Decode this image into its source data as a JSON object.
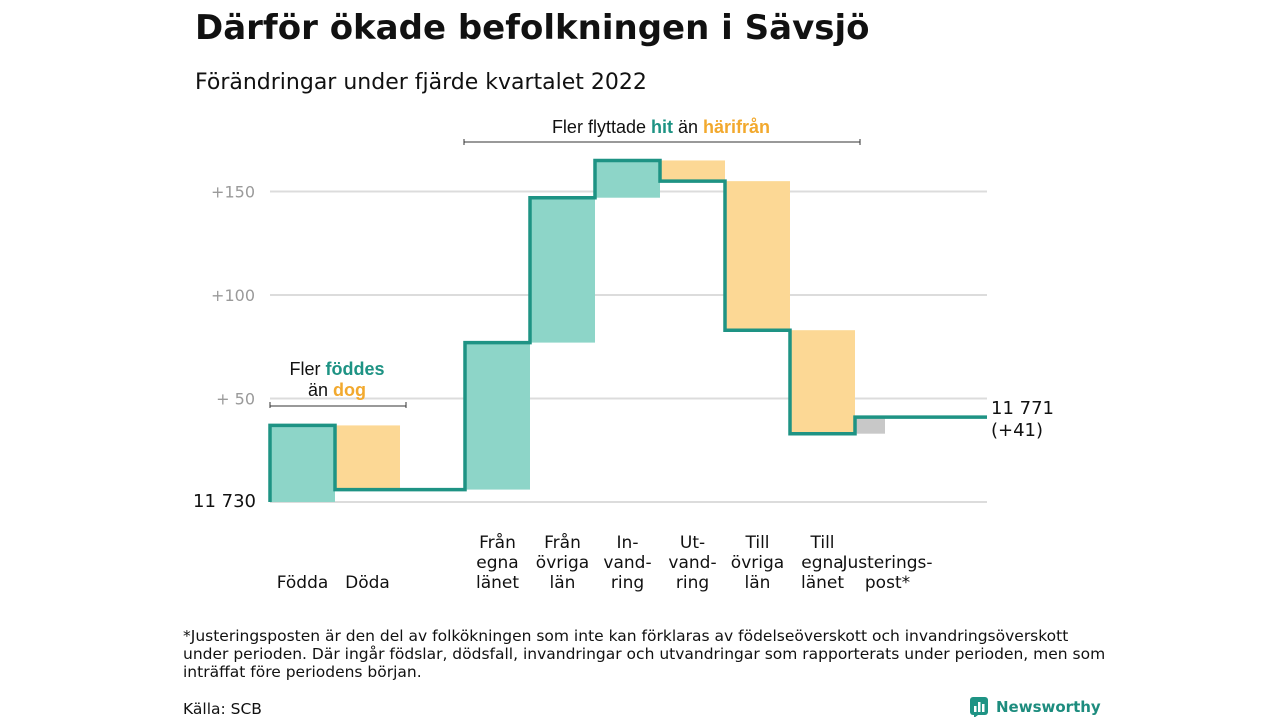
{
  "header": {
    "title": "Därför ökade befolkningen i Sävsjö",
    "subtitle": "Förändringar under fjärde kvartalet 2022"
  },
  "colors": {
    "line": "#1e9384",
    "increase": "#8dd5c8",
    "decrease": "#fcd895",
    "adjustment": "#c8c8c8",
    "grid": "#dcdcdc",
    "tick": "#9a9a9a",
    "hit": "#1e9384",
    "harifran": "#f2a92e"
  },
  "annotations": {
    "births_pre": "Fler ",
    "births_word": "föddes",
    "births_mid": "än ",
    "births_word2": "dog",
    "moves_pre": "Fler flyttade ",
    "moves_hit": "hit",
    "moves_mid": " än ",
    "moves_harifran": "härifrån"
  },
  "chart_data": {
    "type": "waterfall",
    "start_value": 11730,
    "start_label": "11 730",
    "end_label": [
      "11 771",
      "(+41)"
    ],
    "y_ticks": [
      {
        "value": 50,
        "label": "+ 50"
      },
      {
        "value": 100,
        "label": "+100"
      },
      {
        "value": 150,
        "label": "+150"
      }
    ],
    "ylim": [
      0,
      165
    ],
    "grid": true,
    "steps": [
      {
        "label": [
          "Födda"
        ],
        "change": 37,
        "kind": "increase"
      },
      {
        "label": [
          "Döda"
        ],
        "change": -31,
        "kind": "decrease"
      },
      {
        "label": [
          ""
        ],
        "change": 0,
        "kind": "gap"
      },
      {
        "label": [
          "Från",
          "egna",
          "länet"
        ],
        "change": 71,
        "kind": "increase"
      },
      {
        "label": [
          "Från",
          "övriga",
          "län"
        ],
        "change": 70,
        "kind": "increase"
      },
      {
        "label": [
          "In-",
          "vand-",
          "ring"
        ],
        "change": 18,
        "kind": "increase"
      },
      {
        "label": [
          "Ut-",
          "vand-",
          "ring"
        ],
        "change": -10,
        "kind": "decrease"
      },
      {
        "label": [
          "Till",
          "övriga",
          "län"
        ],
        "change": -72,
        "kind": "decrease"
      },
      {
        "label": [
          "Till",
          "egna",
          "länet"
        ],
        "change": -50,
        "kind": "decrease"
      },
      {
        "label": [
          "Justerings-",
          "post*"
        ],
        "change": 8,
        "kind": "adjustment"
      }
    ]
  },
  "footer": {
    "footnote": "*Justeringsposten är den del av folkökningen som inte kan förklaras av födelseöverskott och invandringsöverskott under perioden. Där ingår födslar, dödsfall, invandringar och utvandringar som rapporterats under perioden, men som inträffat före periodens början.",
    "source": "Källa: SCB",
    "brand": "Newsworthy",
    "brand_icon": "newsworthy-logo-icon"
  }
}
